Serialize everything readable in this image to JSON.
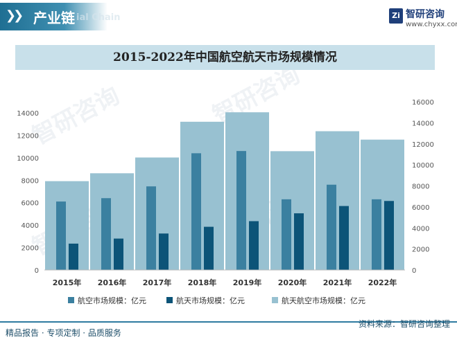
{
  "header": {
    "title": "产业链",
    "subtitle": "ial Chain",
    "logo_mark": "Zi",
    "logo_name": "智研咨询",
    "logo_url": "www.chyxx.com"
  },
  "watermark_text": "智研咨询",
  "footer": {
    "left": "精品报告 · 专项定制 · 品质服务",
    "right": "资料来源：智研咨询整理"
  },
  "colors": {
    "combined": "#98c1d1",
    "aviation": "#3b80a0",
    "space": "#0c5478",
    "accent": "#2d7aa0"
  },
  "chart_data": {
    "type": "bar",
    "title": "2015-2022年中国航空航天市场规模情况",
    "categories": [
      "2015年",
      "2016年",
      "2017年",
      "2018年",
      "2019年",
      "2020年",
      "2021年",
      "2022年"
    ],
    "series": [
      {
        "name": "航空市场规模：亿元",
        "axis": "left",
        "values": [
          6100,
          6400,
          7450,
          10400,
          10600,
          6300,
          7600,
          6300
        ]
      },
      {
        "name": "航天市场规模：亿元",
        "axis": "left",
        "values": [
          2350,
          2800,
          3250,
          3850,
          4350,
          5050,
          5700,
          6150
        ]
      },
      {
        "name": "航天航空市场规模：亿元",
        "axis": "right",
        "values": [
          8450,
          9200,
          10700,
          14100,
          15000,
          11300,
          13200,
          12400
        ]
      }
    ],
    "y_left": {
      "min": 0,
      "max": 14000,
      "ticks": [
        0,
        2000,
        4000,
        6000,
        8000,
        10000,
        12000,
        14000
      ]
    },
    "y_right": {
      "min": 0,
      "max": 16000,
      "ticks": [
        0,
        2000,
        4000,
        6000,
        8000,
        10000,
        12000,
        14000,
        16000
      ]
    },
    "legend_position": "bottom",
    "grid": false
  }
}
